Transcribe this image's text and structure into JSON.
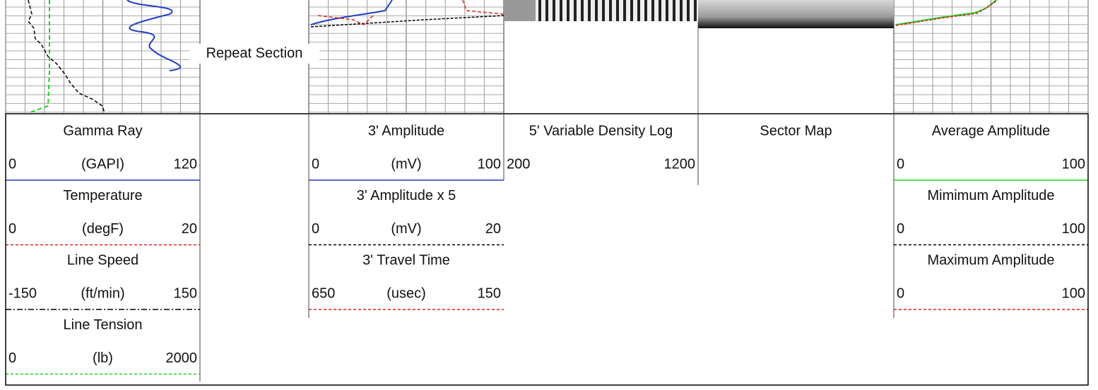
{
  "annotation": "Repeat Section",
  "tracks": [
    {
      "curves": [
        {
          "name": "Gamma Ray",
          "left": 0,
          "unit": "(GAPI)",
          "right": 120,
          "color": "#1f3fbf",
          "dash": "solid"
        },
        {
          "name": "Temperature",
          "left": 0,
          "unit": "(degF)",
          "right": 20,
          "color": "#e02020",
          "dash": "dashed"
        },
        {
          "name": "Line Speed",
          "left": -150,
          "unit": "(ft/min)",
          "right": 150,
          "color": "#000000",
          "dash": "dash-dot"
        },
        {
          "name": "Line Tension",
          "left": 0,
          "unit": "(lb)",
          "right": 2000,
          "color": "#20d020",
          "dash": "dashed"
        }
      ]
    },
    {
      "curves": [
        {
          "name": "3' Amplitude",
          "left": 0,
          "unit": "(mV)",
          "right": 100,
          "color": "#1f3fbf",
          "dash": "solid"
        },
        {
          "name": "3' Amplitude x 5",
          "left": 0,
          "unit": "(mV)",
          "right": 20,
          "color": "#000000",
          "dash": "dashed"
        },
        {
          "name": "3' Travel Time",
          "left": 650,
          "unit": "(usec)",
          "right": 150,
          "color": "#e02020",
          "dash": "dashed"
        }
      ]
    },
    {
      "curves": [
        {
          "name": "5' Variable Density Log",
          "left": 200,
          "right": 1200
        }
      ]
    },
    {
      "curves": [
        {
          "name": "Sector Map"
        }
      ]
    },
    {
      "curves": [
        {
          "name": "Average Amplitude",
          "left": 0,
          "right": 100,
          "color": "#20d020",
          "dash": "solid"
        },
        {
          "name": "Mimimum Amplitude",
          "left": 0,
          "right": 100,
          "color": "#000000",
          "dash": "dashed"
        },
        {
          "name": "Maximum Amplitude",
          "left": 0,
          "right": 100,
          "color": "#e02020",
          "dash": "dashed"
        }
      ]
    }
  ]
}
